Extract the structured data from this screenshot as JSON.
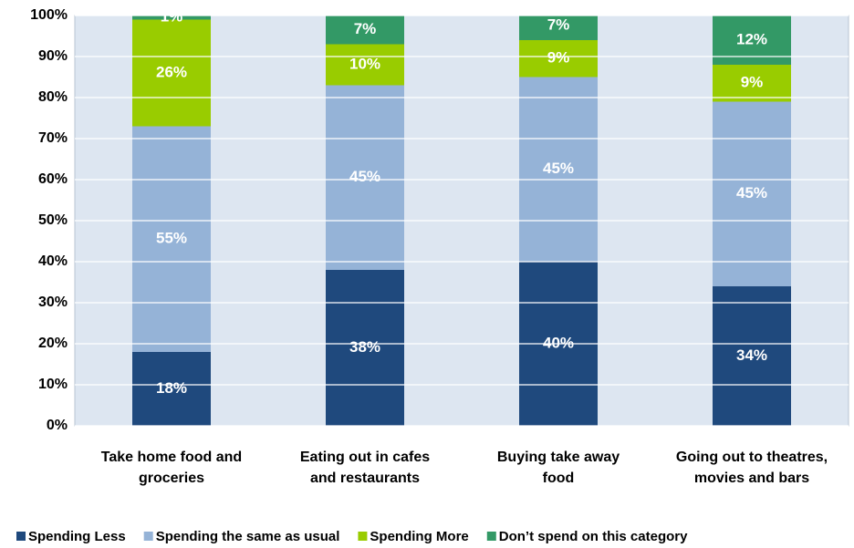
{
  "chart_data": {
    "type": "stacked_bar",
    "categories": [
      [
        "Take home food and",
        "groceries"
      ],
      [
        "Eating out in cafes",
        "and restaurants"
      ],
      [
        "Buying take away",
        "food"
      ],
      [
        "Going out to theatres,",
        "movies and bars"
      ]
    ],
    "series": [
      {
        "name": "Spending Less",
        "color": "#1f497d",
        "values": [
          18,
          38,
          40,
          34
        ],
        "value_labels": [
          "18%",
          "38%",
          "40%",
          "34%"
        ]
      },
      {
        "name": "Spending the same as usual",
        "color": "#95b3d7",
        "values": [
          55,
          45,
          45,
          45
        ],
        "value_labels": [
          "55%",
          "45%",
          "45%",
          "45%"
        ]
      },
      {
        "name": "Spending More",
        "color": "#99cc00",
        "values": [
          26,
          10,
          9,
          9
        ],
        "value_labels": [
          "26%",
          "10%",
          "9%",
          "9%"
        ]
      },
      {
        "name": "Don’t spend on this category",
        "color": "#339966",
        "values": [
          1,
          7,
          7,
          12
        ],
        "value_labels": [
          "1%",
          "7%",
          "7%",
          "12%"
        ]
      }
    ],
    "ylim": [
      0,
      100
    ],
    "yticks": [
      {
        "value": 0,
        "label": "0%"
      },
      {
        "value": 10,
        "label": "10%"
      },
      {
        "value": 20,
        "label": "20%"
      },
      {
        "value": 30,
        "label": "30%"
      },
      {
        "value": 40,
        "label": "40%"
      },
      {
        "value": 50,
        "label": "50%"
      },
      {
        "value": 60,
        "label": "60%"
      },
      {
        "value": 70,
        "label": "70%"
      },
      {
        "value": 80,
        "label": "80%"
      },
      {
        "value": 90,
        "label": "90%"
      },
      {
        "value": 100,
        "label": "100%"
      }
    ],
    "grid": true,
    "legend": "bottom"
  }
}
